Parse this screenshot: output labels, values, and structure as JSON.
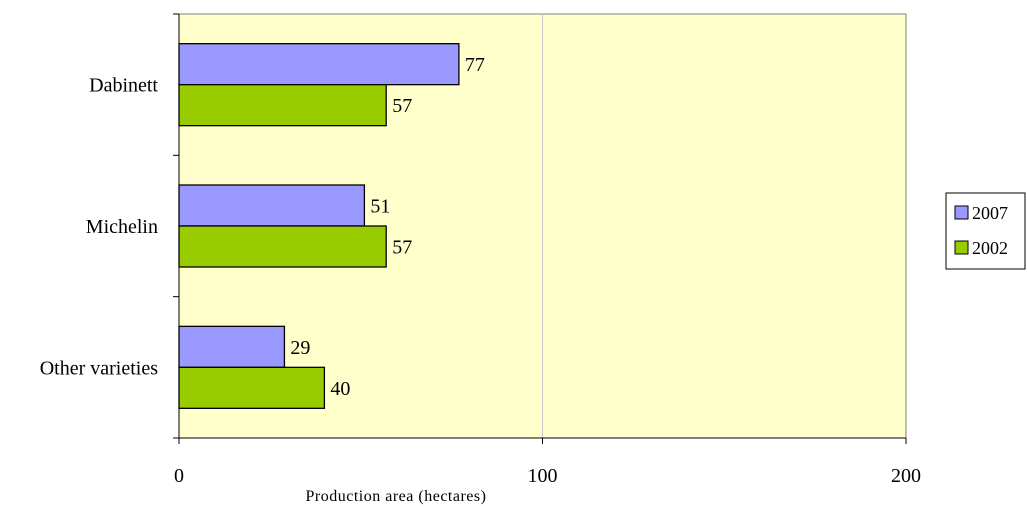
{
  "chart_data": {
    "type": "bar",
    "orientation": "horizontal",
    "categories": [
      "Dabinett",
      "Michelin",
      "Other varieties"
    ],
    "series": [
      {
        "name": "2007",
        "values": [
          77,
          51,
          29
        ],
        "color": "#9999ff"
      },
      {
        "name": "2002",
        "values": [
          57,
          57,
          40
        ],
        "color": "#99cc00"
      }
    ],
    "xlabel": "Production area (hectares)",
    "ylabel": "",
    "xlim": [
      0,
      200
    ],
    "xticks": [
      "0",
      "100",
      "200"
    ],
    "grid": "vertical",
    "legend_position": "right",
    "plot_background": "#ffffcc",
    "data_labels": true
  }
}
